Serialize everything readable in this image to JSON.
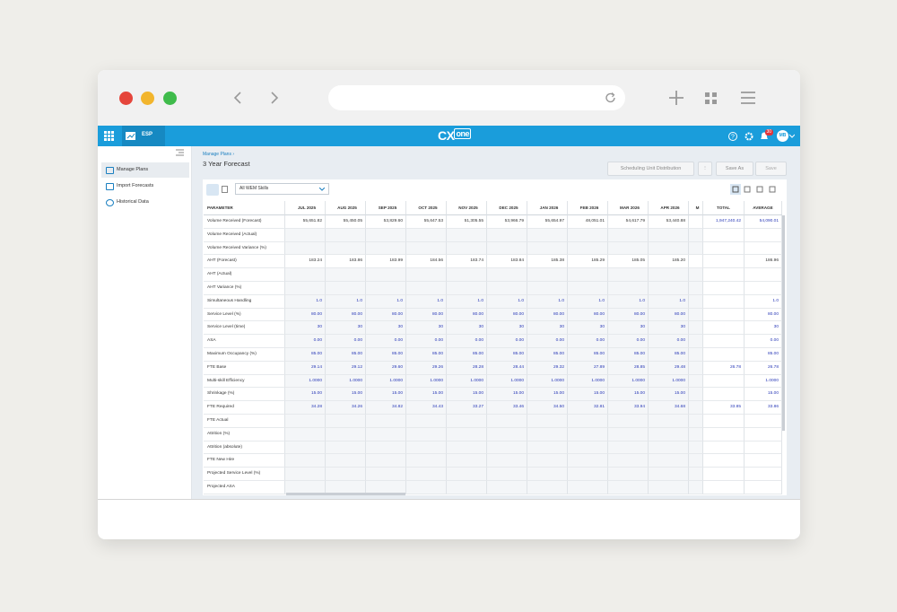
{
  "header": {
    "product": "ESP",
    "logo_main": "CX",
    "logo_sub": "one",
    "notifications": "30",
    "avatar": "MB"
  },
  "sidebar": {
    "items": [
      "Manage Plans",
      "Import Forecasts",
      "Historical Data"
    ]
  },
  "page": {
    "breadcrumb": "Manage Plans",
    "title": "3 Year Forecast",
    "buttons": [
      "Scheduling Unit Distribution",
      "Save As",
      "Save"
    ],
    "filter": "All WEM Skills"
  },
  "table": {
    "parameter_header": "PARAMETER",
    "columns": [
      "JUL 2025",
      "AUG 2025",
      "SEP 2025",
      "OCT 2025",
      "NOV 2025",
      "DEC 2025",
      "JAN 2026",
      "FEB 2026",
      "MAR 2026",
      "APR 2026",
      "M",
      "TOTAL",
      "AVERAGE"
    ],
    "rows": [
      {
        "label": "Volume Received (Forecast)",
        "values": [
          "55,651.82",
          "55,450.05",
          "53,829.60",
          "55,647.53",
          "51,305.55",
          "53,966.79",
          "55,654.97",
          "48,051.01",
          "54,617.79",
          "53,440.88",
          null,
          "1,947,240.42",
          "54,090.01"
        ]
      },
      {
        "label": "Volume Received (Actual)",
        "values": [
          null,
          null,
          null,
          null,
          null,
          null,
          null,
          null,
          null,
          null,
          null,
          null,
          null
        ]
      },
      {
        "label": "Volume Received Variance (%)",
        "values": [
          null,
          null,
          null,
          null,
          null,
          null,
          null,
          null,
          null,
          null,
          null,
          null,
          null
        ]
      },
      {
        "label": "AHT (Forecast)",
        "values": [
          "183.24",
          "183.86",
          "183.99",
          "184.56",
          "183.74",
          "183.84",
          "185.38",
          "185.29",
          "185.05",
          "185.20",
          null,
          null,
          "186.96"
        ]
      },
      {
        "label": "AHT (Actual)",
        "values": [
          null,
          null,
          null,
          null,
          null,
          null,
          null,
          null,
          null,
          null,
          null,
          null,
          null
        ]
      },
      {
        "label": "AHT Variance (%)",
        "values": [
          null,
          null,
          null,
          null,
          null,
          null,
          null,
          null,
          null,
          null,
          null,
          null,
          null
        ]
      },
      {
        "label": "Simultaneous Handling",
        "values": [
          "1.0",
          "1.0",
          "1.0",
          "1.0",
          "1.0",
          "1.0",
          "1.0",
          "1.0",
          "1.0",
          "1.0",
          null,
          null,
          "1.0"
        ]
      },
      {
        "label": "Service Level (%)",
        "values": [
          "80.00",
          "80.00",
          "80.00",
          "80.00",
          "80.00",
          "80.00",
          "80.00",
          "80.00",
          "80.00",
          "80.00",
          null,
          null,
          "80.00"
        ]
      },
      {
        "label": "Service Level (time)",
        "values": [
          "30",
          "30",
          "30",
          "30",
          "30",
          "30",
          "30",
          "30",
          "30",
          "30",
          null,
          null,
          "30"
        ]
      },
      {
        "label": "ASA",
        "values": [
          "0.00",
          "0.00",
          "0.00",
          "0.00",
          "0.00",
          "0.00",
          "0.00",
          "0.00",
          "0.00",
          "0.00",
          null,
          null,
          "0.00"
        ]
      },
      {
        "label": "Maximum Occupancy (%)",
        "values": [
          "85.00",
          "85.00",
          "85.00",
          "85.00",
          "85.00",
          "85.00",
          "85.00",
          "85.00",
          "85.00",
          "85.00",
          null,
          null,
          "85.00"
        ]
      },
      {
        "label": "FTE Base",
        "values": [
          "29.14",
          "29.12",
          "29.60",
          "29.26",
          "28.28",
          "28.44",
          "29.32",
          "27.89",
          "28.85",
          "29.48",
          null,
          "26.78",
          "26.78"
        ]
      },
      {
        "label": "Multi-skill Efficiency",
        "values": [
          "1.0000",
          "1.0000",
          "1.0000",
          "1.0000",
          "1.0000",
          "1.0000",
          "1.0000",
          "1.0000",
          "1.0000",
          "1.0000",
          null,
          null,
          "1.0000"
        ]
      },
      {
        "label": "Shrinkage (%)",
        "values": [
          "15.00",
          "15.00",
          "15.00",
          "15.00",
          "15.00",
          "15.00",
          "15.00",
          "15.00",
          "15.00",
          "15.00",
          null,
          null,
          "15.00"
        ]
      },
      {
        "label": "FTE Required",
        "values": [
          "34.28",
          "34.26",
          "34.82",
          "34.43",
          "33.27",
          "33.46",
          "34.50",
          "32.81",
          "33.94",
          "34.68",
          null,
          "33.85",
          "33.86"
        ]
      },
      {
        "label": "FTE Actual",
        "values": [
          null,
          null,
          null,
          null,
          null,
          null,
          null,
          null,
          null,
          null,
          null,
          null,
          null
        ]
      },
      {
        "label": "Attrition (%)",
        "values": [
          null,
          null,
          null,
          null,
          null,
          null,
          null,
          null,
          null,
          null,
          null,
          null,
          null
        ]
      },
      {
        "label": "Attrition (absolute)",
        "values": [
          null,
          null,
          null,
          null,
          null,
          null,
          null,
          null,
          null,
          null,
          null,
          null,
          null
        ]
      },
      {
        "label": "FTE New Hire",
        "values": [
          null,
          null,
          null,
          null,
          null,
          null,
          null,
          null,
          null,
          null,
          null,
          null,
          null
        ]
      },
      {
        "label": "Projected Service Level (%)",
        "values": [
          null,
          null,
          null,
          null,
          null,
          null,
          null,
          null,
          null,
          null,
          null,
          null,
          null
        ]
      },
      {
        "label": "Projected ASA",
        "values": [
          null,
          null,
          null,
          null,
          null,
          null,
          null,
          null,
          null,
          null,
          null,
          null,
          null
        ]
      }
    ]
  }
}
